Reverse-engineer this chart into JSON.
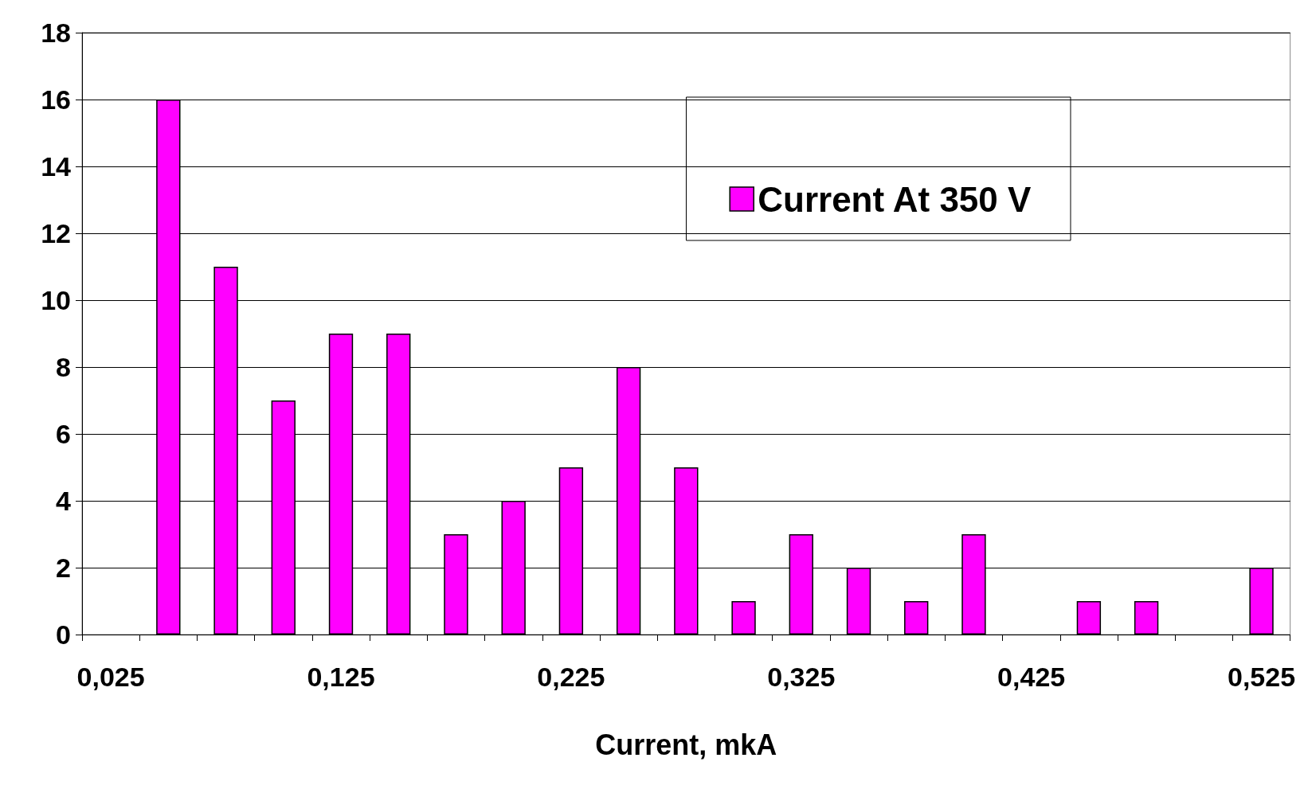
{
  "chart_data": {
    "type": "bar",
    "xlabel": "Current, mkA",
    "categories": [
      "0,025",
      null,
      null,
      null,
      "0,125",
      null,
      null,
      null,
      "0,225",
      null,
      null,
      null,
      "0,325",
      null,
      null,
      null,
      "0,425",
      null,
      null,
      null,
      "0,525"
    ],
    "series": [
      {
        "name": "Current At 350 V",
        "color": "#ff00ff",
        "values": [
          0,
          16,
          11,
          7,
          9,
          9,
          3,
          4,
          5,
          8,
          5,
          1,
          3,
          2,
          1,
          3,
          0,
          1,
          1,
          0,
          2
        ]
      }
    ],
    "ylim": [
      0,
      18
    ],
    "yticks": [
      0,
      2,
      4,
      6,
      8,
      10,
      12,
      14,
      16,
      18
    ],
    "grid": "y",
    "legend": "top right"
  }
}
